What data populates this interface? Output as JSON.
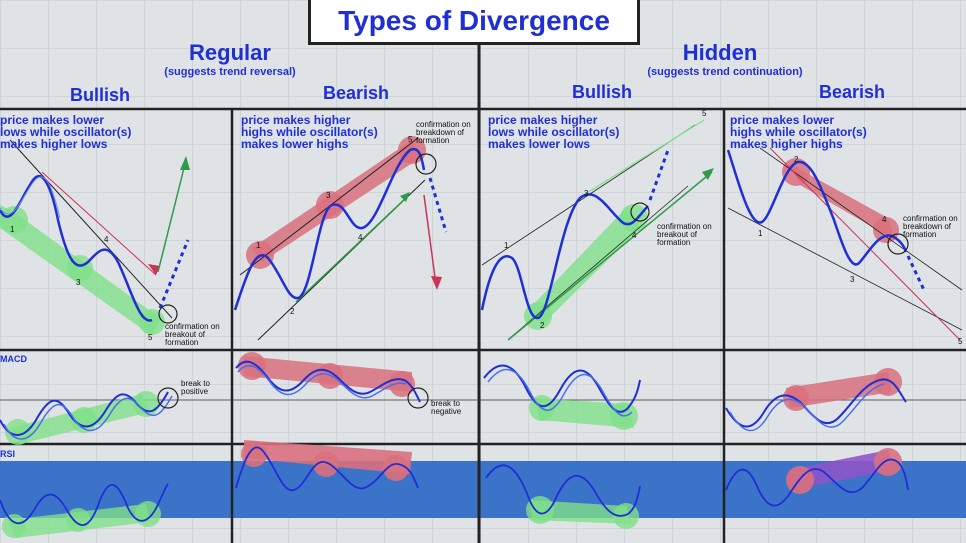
{
  "title": "Types of Divergence",
  "regular": {
    "label": "Regular",
    "subtitle": "(suggests trend reversal)",
    "bullish": {
      "label": "Bullish",
      "text": "price makes lower\nlows while oscillator(s)\nmakes higher lows",
      "annotation": "confirmation on\nbreakout of\nformation",
      "macd_note": "break to\npositive"
    },
    "bearish": {
      "label": "Bearish",
      "text": "price makes higher\nhighs while oscillator(s)\nmakes lower highs",
      "annotation": "confirmation on\nbreakdown of\nformation",
      "macd_note": "break to\nnegative"
    }
  },
  "hidden": {
    "label": "Hidden",
    "subtitle": "(suggests trend continuation)",
    "bullish": {
      "label": "Bullish",
      "text": "price makes higher\nlows while oscillator(s)\nmakes lower lows",
      "annotation": "confirmation on\nbreakout of\nformation"
    },
    "bearish": {
      "label": "Bearish",
      "text": "price makes lower\nhighs while oscillator(s)\nmakes higher highs",
      "annotation": "confirmation on\nbreakdown of\nformation"
    }
  },
  "indicators": {
    "macd": "MACD",
    "rsi": "RSI"
  },
  "point_labels": [
    "1",
    "2",
    "3",
    "4",
    "5"
  ],
  "colors": {
    "title_text": "#1f2fd6",
    "price_line": "#1f2fd6",
    "bull_highlight": "#7fe08a",
    "bear_highlight": "#d9707e",
    "rsi_band": "#3b73c8",
    "bull_arrow": "#2e9a4a",
    "bear_arrow": "#cc3355"
  }
}
